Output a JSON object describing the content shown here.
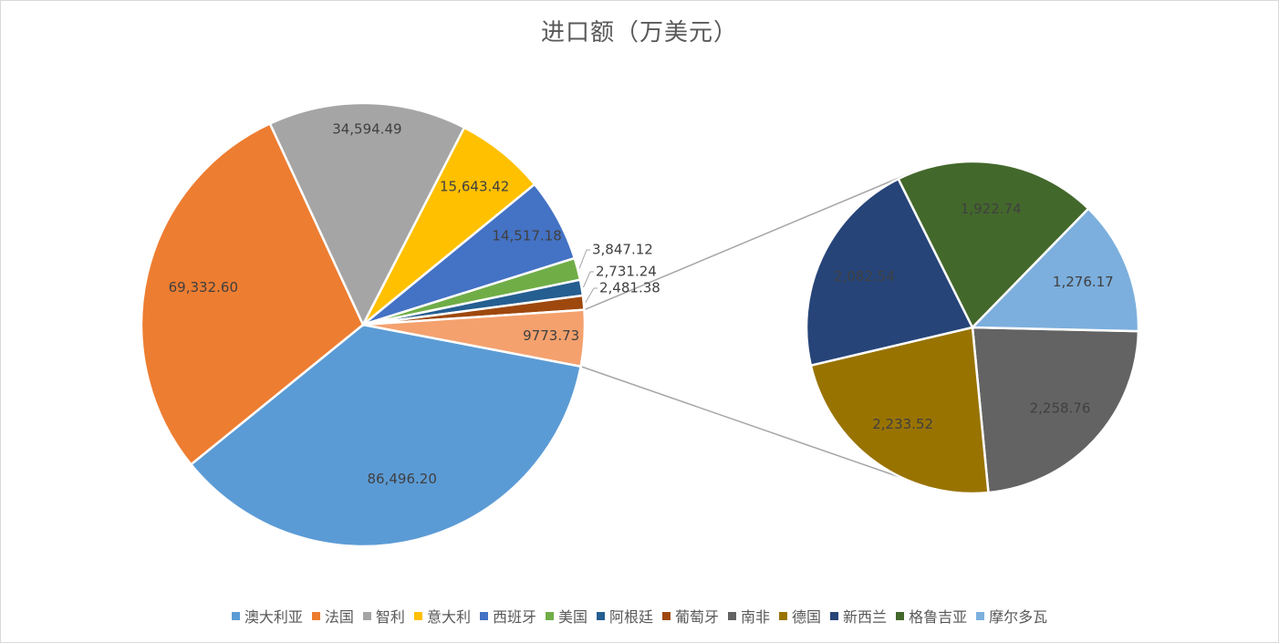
{
  "chart_data": {
    "type": "pie",
    "subtype": "pie-of-pie",
    "title": "进口额（万美元）",
    "legend_position": "bottom",
    "primary_slices": [
      {
        "name": "澳大利亚",
        "value": 86496.2,
        "label": "86,496.20",
        "color": "#5b9bd5"
      },
      {
        "name": "法国",
        "value": 69332.6,
        "label": "69,332.60",
        "color": "#ed7d31"
      },
      {
        "name": "智利",
        "value": 34594.49,
        "label": "34,594.49",
        "color": "#a5a5a5"
      },
      {
        "name": "意大利",
        "value": 15643.42,
        "label": "15,643.42",
        "color": "#ffc000"
      },
      {
        "name": "西班牙",
        "value": 14517.18,
        "label": "14,517.18",
        "color": "#4472c4"
      },
      {
        "name": "美国",
        "value": 3847.12,
        "label": "3,847.12",
        "color": "#70ad47"
      },
      {
        "name": "阿根廷",
        "value": 2731.24,
        "label": "2,731.24",
        "color": "#255e91"
      },
      {
        "name": "葡萄牙",
        "value": 2481.38,
        "label": "2,481.38",
        "color": "#9e480e"
      }
    ],
    "other_slice": {
      "value": 9773.73,
      "label": "9773.73",
      "color": "#f4a16e"
    },
    "secondary_slices": [
      {
        "name": "南非",
        "value": 2258.76,
        "label": "2,258.76",
        "color": "#636363"
      },
      {
        "name": "德国",
        "value": 2233.52,
        "label": "2,233.52",
        "color": "#997300"
      },
      {
        "name": "新西兰",
        "value": 2082.54,
        "label": "2,082.54",
        "color": "#264478"
      },
      {
        "name": "格鲁吉亚",
        "value": 1922.74,
        "label": "1,922.74",
        "color": "#43682b"
      },
      {
        "name": "摩尔多瓦",
        "value": 1276.17,
        "label": "1,276.17",
        "color": "#7cafdd"
      }
    ],
    "legend": [
      "澳大利亚",
      "法国",
      "智利",
      "意大利",
      "西班牙",
      "美国",
      "阿根廷",
      "葡萄牙",
      "南非",
      "德国",
      "新西兰",
      "格鲁吉亚",
      "摩尔多瓦"
    ]
  }
}
